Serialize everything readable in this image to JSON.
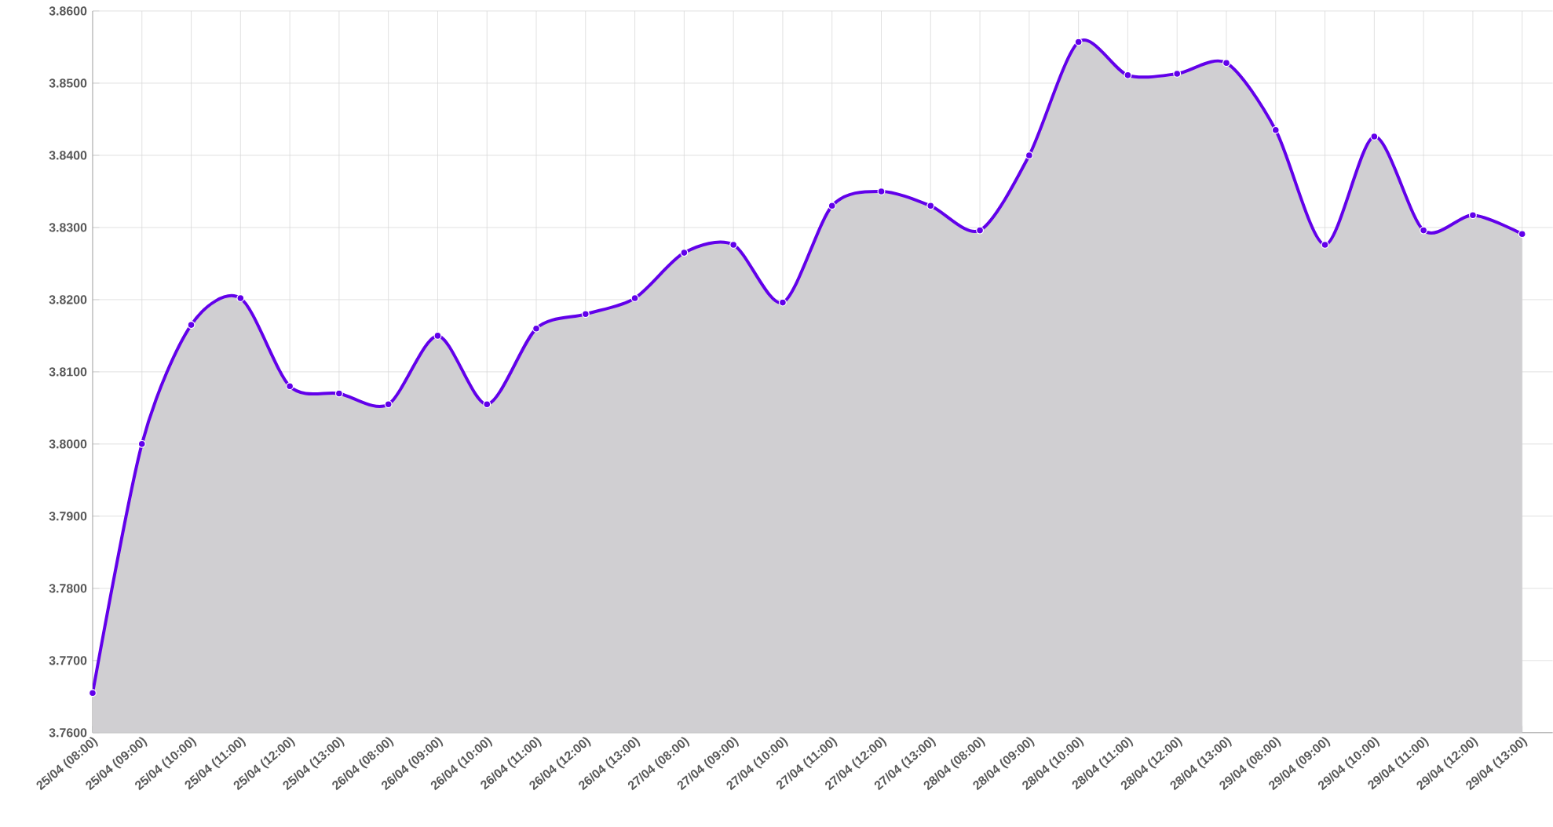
{
  "chart_data": {
    "type": "area",
    "categories": [
      "25/04 (08:00)",
      "25/04 (09:00)",
      "25/04 (10:00)",
      "25/04 (11:00)",
      "25/04 (12:00)",
      "25/04 (13:00)",
      "26/04 (08:00)",
      "26/04 (09:00)",
      "26/04 (10:00)",
      "26/04 (11:00)",
      "26/04 (12:00)",
      "26/04 (13:00)",
      "27/04 (08:00)",
      "27/04 (09:00)",
      "27/04 (10:00)",
      "27/04 (11:00)",
      "27/04 (12:00)",
      "27/04 (13:00)",
      "28/04 (08:00)",
      "28/04 (09:00)",
      "28/04 (10:00)",
      "28/04 (11:00)",
      "28/04 (12:00)",
      "28/04 (13:00)",
      "29/04 (08:00)",
      "29/04 (09:00)",
      "29/04 (10:00)",
      "29/04 (11:00)",
      "29/04 (12:00)",
      "29/04 (13:00)"
    ],
    "series": [
      {
        "color": "#6200ea",
        "values": [
          3.7655,
          3.8,
          3.8165,
          3.8202,
          3.808,
          3.807,
          3.8055,
          3.815,
          3.8055,
          3.816,
          3.818,
          3.8202,
          3.8265,
          3.8276,
          3.8196,
          3.833,
          3.835,
          3.833,
          3.8296,
          3.84,
          3.8557,
          3.8511,
          3.8513,
          3.8528,
          3.8435,
          3.8276,
          3.8426,
          3.8296,
          3.8317,
          3.8291
        ]
      }
    ],
    "ylim": [
      3.76,
      3.86
    ],
    "yticks": [
      {
        "value": 3.76,
        "label": "3.7600"
      },
      {
        "value": 3.77,
        "label": "3.7700"
      },
      {
        "value": 3.78,
        "label": "3.7800"
      },
      {
        "value": 3.79,
        "label": "3.7900"
      },
      {
        "value": 3.8,
        "label": "3.8000"
      },
      {
        "value": 3.81,
        "label": "3.8100"
      },
      {
        "value": 3.82,
        "label": "3.8200"
      },
      {
        "value": 3.83,
        "label": "3.8300"
      },
      {
        "value": 3.84,
        "label": "3.8400"
      },
      {
        "value": 3.85,
        "label": "3.8500"
      },
      {
        "value": 3.86,
        "label": "3.8600"
      }
    ],
    "grid": true,
    "marker": "circle"
  }
}
